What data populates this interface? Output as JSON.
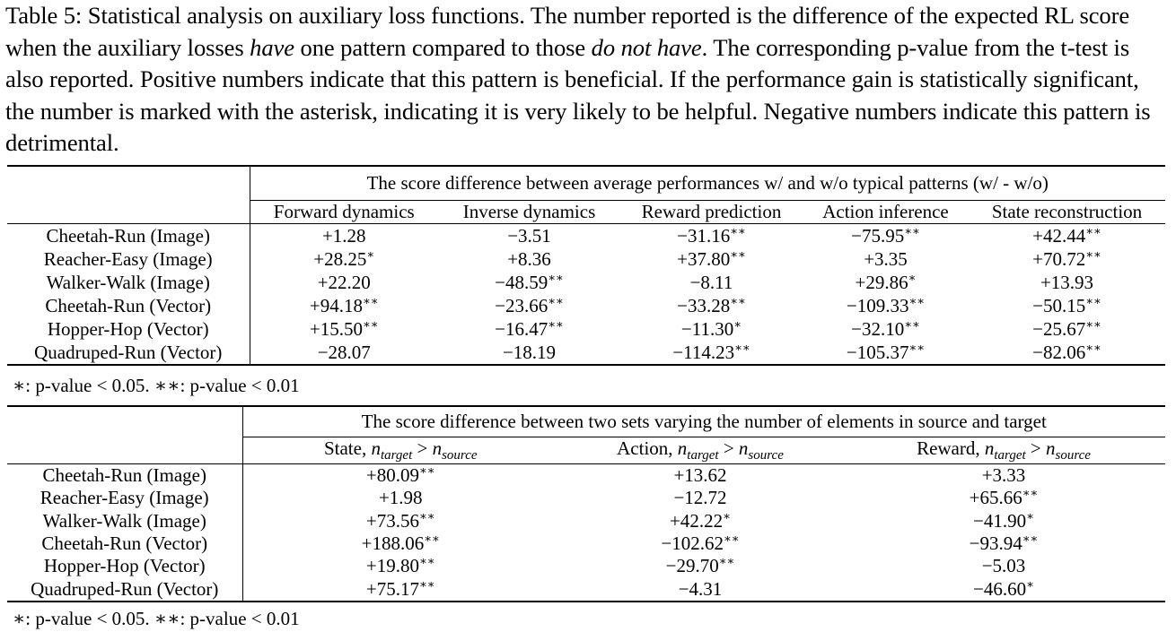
{
  "caption": {
    "part1": "Table 5: Statistical analysis on auxiliary loss functions. The number reported is the difference of the expected RL score when the auxiliary losses ",
    "have": "have",
    "part2": " one pattern compared to those ",
    "do_not_have": "do not have",
    "part3": ". The corresponding p-value from the t-test is also reported. Positive numbers indicate that this pattern is beneficial. If the performance gain is statistically significant, the number is marked with the asterisk, indicating it is very likely to be helpful. Negative numbers indicate this pattern is detrimental."
  },
  "table1": {
    "group_header": "The score difference between average performances w/ and w/o typical patterns (w/ - w/o)",
    "columns": [
      "Forward dynamics",
      "Inverse dynamics",
      "Reward prediction",
      "Action inference",
      "State reconstruction"
    ],
    "rows": [
      {
        "env": "Cheetah-Run (Image)",
        "cells": [
          [
            "+1.28",
            ""
          ],
          [
            "−3.51",
            ""
          ],
          [
            "−31.16",
            "**"
          ],
          [
            "−75.95",
            "**"
          ],
          [
            "+42.44",
            "**"
          ]
        ]
      },
      {
        "env": "Reacher-Easy (Image)",
        "cells": [
          [
            "+28.25",
            "*"
          ],
          [
            "+8.36",
            ""
          ],
          [
            "+37.80",
            "**"
          ],
          [
            "+3.35",
            ""
          ],
          [
            "+70.72",
            "**"
          ]
        ]
      },
      {
        "env": "Walker-Walk (Image)",
        "cells": [
          [
            "+22.20",
            ""
          ],
          [
            "−48.59",
            "**"
          ],
          [
            "−8.11",
            ""
          ],
          [
            "+29.86",
            "*"
          ],
          [
            "+13.93",
            ""
          ]
        ]
      },
      {
        "env": "Cheetah-Run (Vector)",
        "cells": [
          [
            "+94.18",
            "**"
          ],
          [
            "−23.66",
            "**"
          ],
          [
            "−33.28",
            "**"
          ],
          [
            "−109.33",
            "**"
          ],
          [
            "−50.15",
            "**"
          ]
        ]
      },
      {
        "env": "Hopper-Hop (Vector)",
        "cells": [
          [
            "+15.50",
            "**"
          ],
          [
            "−16.47",
            "**"
          ],
          [
            "−11.30",
            "*"
          ],
          [
            "−32.10",
            "**"
          ],
          [
            "−25.67",
            "**"
          ]
        ]
      },
      {
        "env": "Quadruped-Run (Vector)",
        "cells": [
          [
            "−28.07",
            ""
          ],
          [
            "−18.19",
            ""
          ],
          [
            "−114.23",
            "**"
          ],
          [
            "−105.37",
            "**"
          ],
          [
            "−82.06",
            "**"
          ]
        ]
      }
    ],
    "note": "∗: p-value < 0.05. ∗∗: p-value < 0.01"
  },
  "table2": {
    "group_header": "The score difference between two sets varying the number of elements in source and target",
    "columns": [
      {
        "label": "State, ",
        "lhs": "n",
        "lhs_sub": "target",
        "op": " > ",
        "rhs": "n",
        "rhs_sub": "source"
      },
      {
        "label": "Action, ",
        "lhs": "n",
        "lhs_sub": "target",
        "op": " > ",
        "rhs": "n",
        "rhs_sub": "source"
      },
      {
        "label": "Reward, ",
        "lhs": "n",
        "lhs_sub": "target",
        "op": " > ",
        "rhs": "n",
        "rhs_sub": "source"
      }
    ],
    "rows": [
      {
        "env": "Cheetah-Run (Image)",
        "cells": [
          [
            "+80.09",
            "**"
          ],
          [
            "+13.62",
            ""
          ],
          [
            "+3.33",
            ""
          ]
        ]
      },
      {
        "env": "Reacher-Easy (Image)",
        "cells": [
          [
            "+1.98",
            ""
          ],
          [
            "−12.72",
            ""
          ],
          [
            "+65.66",
            "**"
          ]
        ]
      },
      {
        "env": "Walker-Walk (Image)",
        "cells": [
          [
            "+73.56",
            "**"
          ],
          [
            "+42.22",
            "*"
          ],
          [
            "−41.90",
            "*"
          ]
        ]
      },
      {
        "env": "Cheetah-Run (Vector)",
        "cells": [
          [
            "+188.06",
            "**"
          ],
          [
            "−102.62",
            "**"
          ],
          [
            "−93.94",
            "**"
          ]
        ]
      },
      {
        "env": "Hopper-Hop (Vector)",
        "cells": [
          [
            "+19.80",
            "**"
          ],
          [
            "−29.70",
            "**"
          ],
          [
            "−5.03",
            ""
          ]
        ]
      },
      {
        "env": "Quadruped-Run (Vector)",
        "cells": [
          [
            "+75.17",
            "**"
          ],
          [
            "−4.31",
            ""
          ],
          [
            "−46.60",
            "*"
          ]
        ]
      }
    ],
    "note": "∗: p-value < 0.05. ∗∗: p-value < 0.01"
  }
}
